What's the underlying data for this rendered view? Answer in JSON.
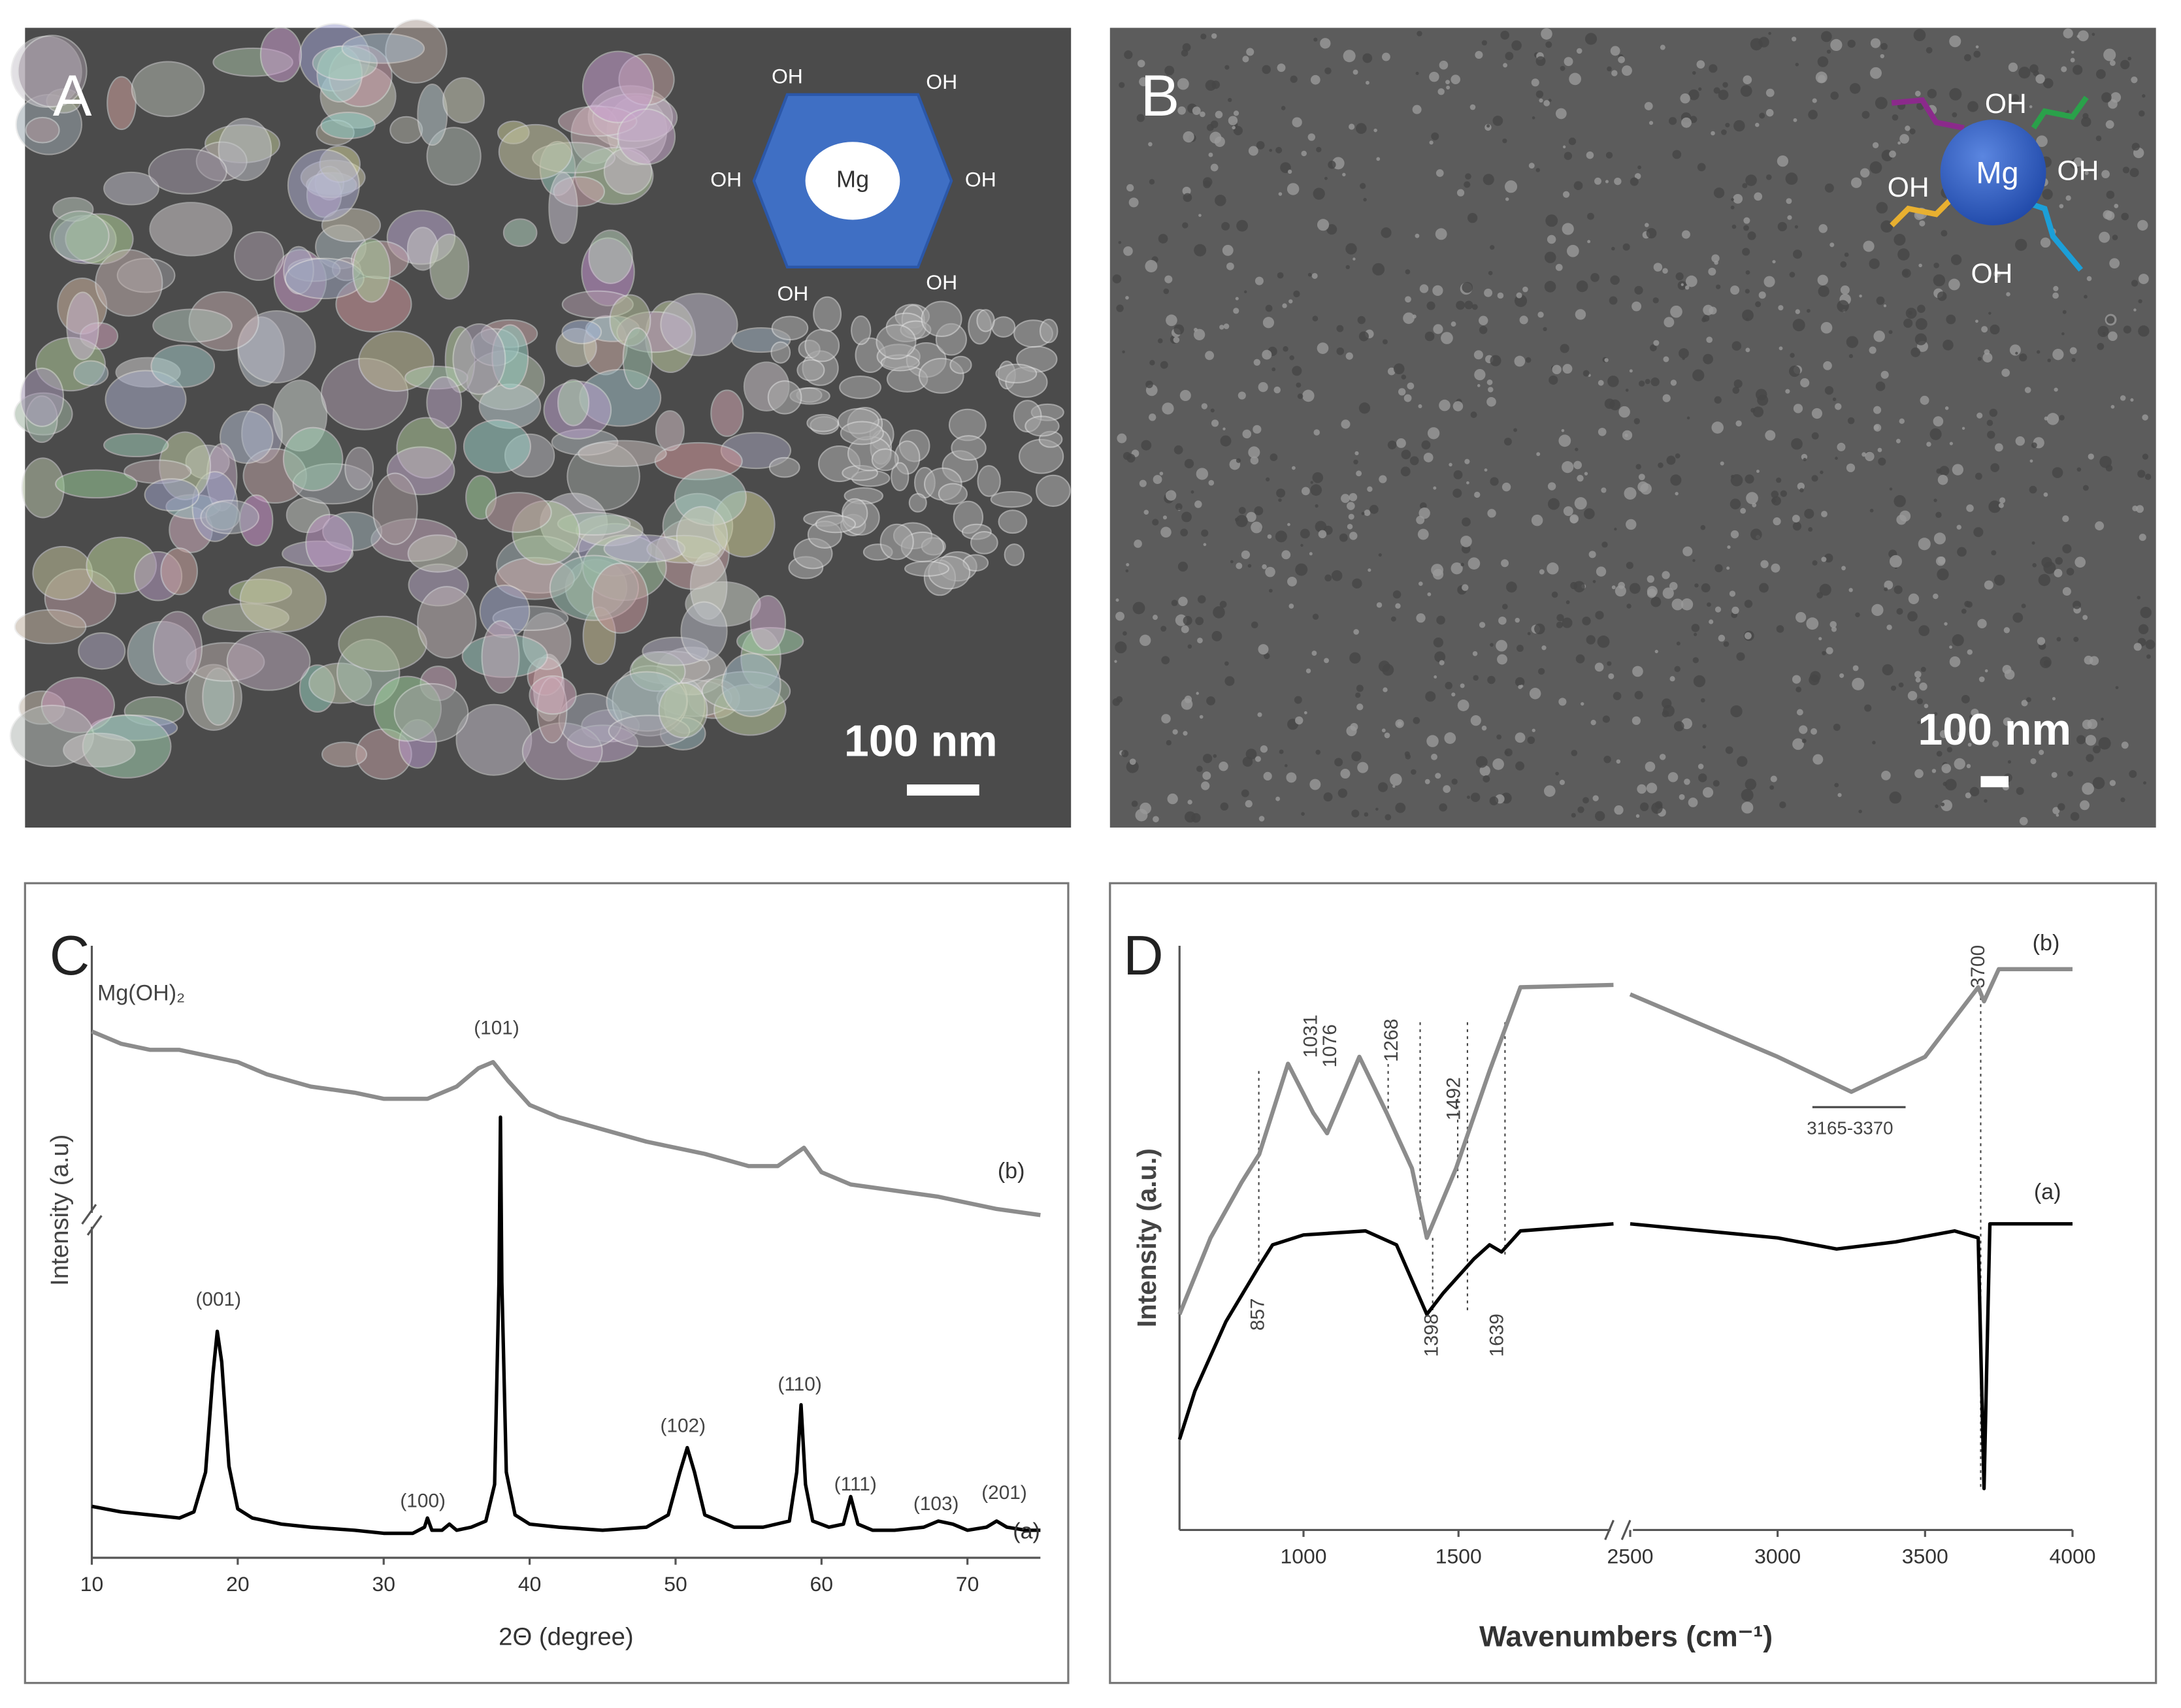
{
  "panels": [
    {
      "label": "A",
      "scale_bar": "100 nm",
      "inset": {
        "center": "Mg",
        "groups": [
          "OH",
          "OH",
          "OH",
          "OH",
          "OH",
          "OH"
        ]
      }
    },
    {
      "label": "B",
      "scale_bar": "100 nm",
      "inset": {
        "center": "Mg",
        "groups": [
          "OH",
          "OH",
          "OH",
          "OH"
        ]
      }
    }
  ],
  "chart_data": [
    {
      "type": "line",
      "label": "C",
      "xlabel": "2Θ (degree)",
      "ylabel": "Intensity (a.u)",
      "xlim": [
        10,
        75
      ],
      "xticks": [
        10,
        20,
        30,
        40,
        50,
        60,
        70
      ],
      "ylim": [
        0,
        100
      ],
      "series": [
        {
          "name": "(b)",
          "color": "#8c8c8c",
          "x": [
            10,
            12,
            14,
            16,
            18,
            20,
            22,
            25,
            28,
            30,
            33,
            35,
            36.5,
            37.5,
            38.5,
            40,
            42,
            45,
            48,
            50,
            52,
            55,
            57,
            58.8,
            60,
            62,
            65,
            68,
            70,
            72,
            75
          ],
          "values": [
            86,
            84,
            83,
            83,
            82,
            81,
            79,
            77,
            76,
            75,
            75,
            77,
            80,
            81,
            78,
            74,
            72,
            70,
            68,
            67,
            66,
            64,
            64,
            67,
            63,
            61,
            60,
            59,
            58,
            57,
            56
          ]
        },
        {
          "name": "(a)",
          "color": "#000000",
          "x": [
            10,
            12,
            14,
            16,
            17,
            17.8,
            18.3,
            18.6,
            18.9,
            19.4,
            20,
            21,
            23,
            25,
            28,
            30,
            32,
            32.8,
            33,
            33.3,
            34,
            34.5,
            35,
            36,
            37,
            37.6,
            37.9,
            38,
            38.1,
            38.4,
            39,
            40,
            42,
            45,
            48,
            49.5,
            50.3,
            50.8,
            51.3,
            52,
            54,
            56,
            57.8,
            58.3,
            58.6,
            58.9,
            59.4,
            60.5,
            61.5,
            62,
            62.5,
            63.5,
            65,
            67,
            68,
            69,
            70,
            71.3,
            72,
            72.7,
            74,
            75
          ],
          "values": [
            8.4,
            7.5,
            7,
            6.5,
            7.5,
            14,
            30,
            37,
            32,
            15,
            8,
            6.5,
            5.5,
            5,
            4.5,
            4,
            4,
            5,
            6.5,
            4.5,
            4.5,
            5.5,
            4.5,
            5,
            6,
            12,
            45,
            72,
            45,
            14,
            7,
            5.5,
            5,
            4.5,
            5,
            7,
            14,
            18,
            14,
            7,
            5,
            5,
            6,
            14,
            25,
            12,
            6,
            5,
            5.5,
            10,
            5.5,
            4.5,
            4.5,
            5,
            6,
            5.5,
            4.5,
            5,
            6,
            5,
            4.5,
            4.5
          ]
        }
      ],
      "annotations": [
        "Mg(OH)₂",
        "(101)",
        "(001)",
        "(100)",
        "(102)",
        "(110)",
        "(111)",
        "(103)",
        "(201)"
      ]
    },
    {
      "type": "line",
      "label": "D",
      "xlabel": "Wavenumbers (cm⁻¹)",
      "ylabel": "Intensity (a.u.)",
      "xlim": [
        600,
        4000
      ],
      "x_break": [
        2000,
        2500
      ],
      "xticks": [
        1000,
        1500,
        2500,
        3000,
        3500,
        4000
      ],
      "ylim": [
        0,
        100
      ],
      "series": [
        {
          "name": "(b)",
          "color": "#8c8c8c",
          "x": [
            600,
            700,
            800,
            857,
            950,
            1031,
            1076,
            1180,
            1268,
            1350,
            1398,
            1492,
            1600,
            1700,
            2000,
            2500,
            3000,
            3250,
            3500,
            3680,
            3700,
            3750,
            4000
          ],
          "values": [
            36.9,
            50,
            59.5,
            64.3,
            79.8,
            71.4,
            67.9,
            81,
            71.4,
            61.9,
            50,
            61.9,
            78.6,
            92.9,
            93.3,
            91.7,
            81,
            75,
            81,
            92.9,
            90.5,
            96,
            96
          ]
        },
        {
          "name": "(a)",
          "color": "#000000",
          "x": [
            600,
            650,
            750,
            857,
            900,
            1000,
            1200,
            1300,
            1398,
            1450,
            1550,
            1600,
            1639,
            1700,
            2000,
            2500,
            3000,
            3200,
            3400,
            3600,
            3680,
            3700,
            3720,
            4000
          ],
          "values": [
            15.5,
            23.8,
            35.7,
            45.2,
            48.8,
            50.5,
            51.2,
            48.8,
            36.9,
            40.5,
            46.4,
            48.8,
            47.6,
            51.2,
            52.4,
            52.4,
            50,
            48.1,
            49.3,
            51.2,
            50,
            7.1,
            52.4,
            52.4
          ]
        }
      ],
      "annotations": [
        "1031",
        "1076",
        "1268",
        "1492",
        "3700",
        "857",
        "1398",
        "1639",
        "3165-3370"
      ]
    }
  ]
}
